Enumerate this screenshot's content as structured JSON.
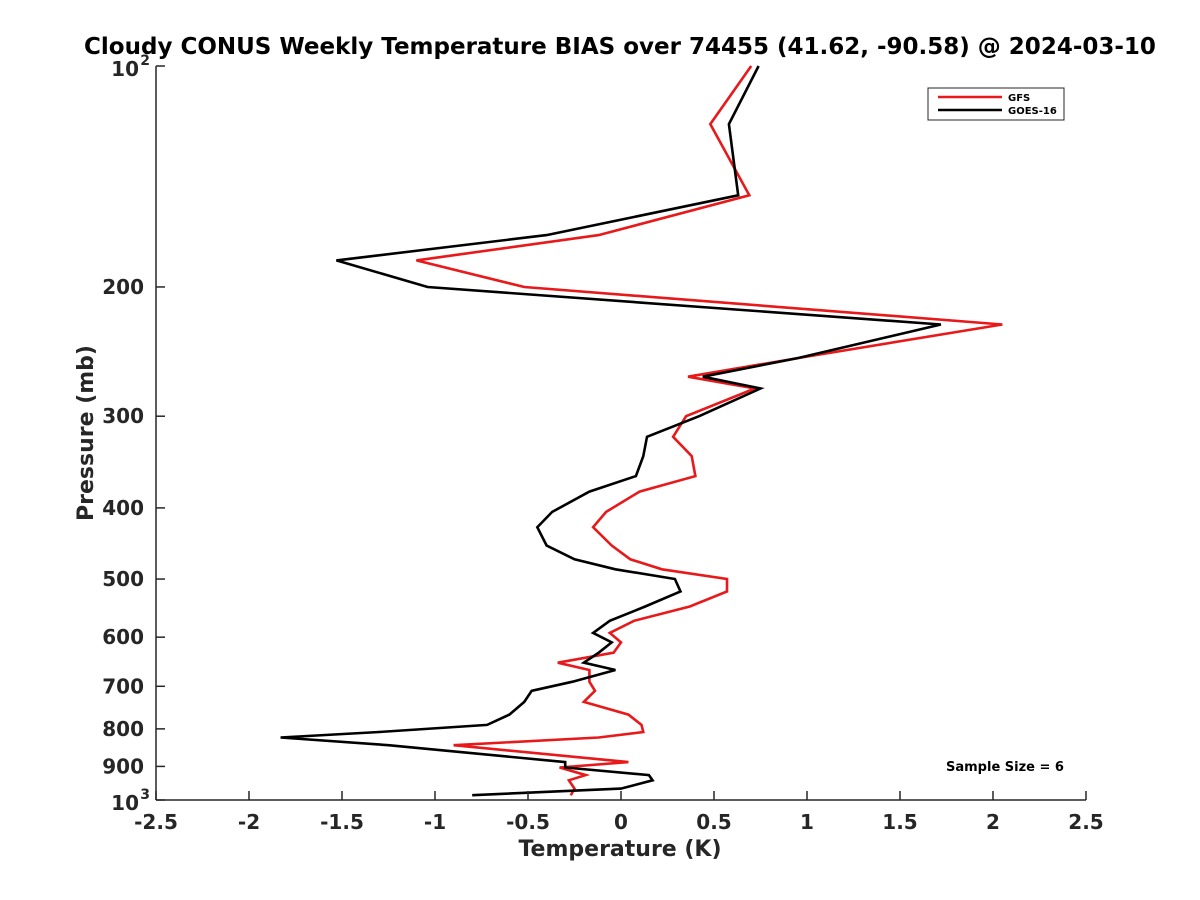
{
  "chart_data": {
    "type": "line",
    "title": "Cloudy CONUS Weekly Temperature BIAS over 74455 (41.62, -90.58) @ 2024-03-10",
    "xlabel": "Temperature (K)",
    "ylabel": "Pressure (mb)",
    "xlim": [
      -2.5,
      2.5
    ],
    "ylim": [
      100,
      1000
    ],
    "y_scale": "log",
    "y_reversed": true,
    "x_ticks": [
      "-2.5",
      "-2",
      "-1.5",
      "-1",
      "-0.5",
      "0",
      "0.5",
      "1",
      "1.5",
      "2",
      "2.5"
    ],
    "y_ticks": [
      {
        "value": 100,
        "base": "10",
        "exp": "2"
      },
      {
        "value": 200,
        "label": "200"
      },
      {
        "value": 300,
        "label": "300"
      },
      {
        "value": 400,
        "label": "400"
      },
      {
        "value": 500,
        "label": "500"
      },
      {
        "value": 600,
        "label": "600"
      },
      {
        "value": 700,
        "label": "700"
      },
      {
        "value": 800,
        "label": "800"
      },
      {
        "value": 900,
        "label": "900"
      },
      {
        "value": 1000,
        "base": "10",
        "exp": "3"
      }
    ],
    "grid": false,
    "legend_position": "top-right",
    "annotation": "Sample Size = 6",
    "series": [
      {
        "name": "GFS",
        "color": "#e8191a",
        "points": [
          [
            0.7,
            100
          ],
          [
            0.48,
            120
          ],
          [
            0.69,
            150
          ],
          [
            -0.12,
            170
          ],
          [
            -1.1,
            184
          ],
          [
            -0.52,
            200
          ],
          [
            2.05,
            225
          ],
          [
            0.95,
            250
          ],
          [
            0.36,
            265
          ],
          [
            0.72,
            275
          ],
          [
            0.35,
            300
          ],
          [
            0.28,
            320
          ],
          [
            0.38,
            340
          ],
          [
            0.4,
            362
          ],
          [
            0.1,
            380
          ],
          [
            -0.08,
            405
          ],
          [
            -0.15,
            425
          ],
          [
            -0.05,
            450
          ],
          [
            0.05,
            470
          ],
          [
            0.22,
            485
          ],
          [
            0.57,
            500
          ],
          [
            0.57,
            520
          ],
          [
            0.37,
            545
          ],
          [
            0.07,
            570
          ],
          [
            -0.06,
            592
          ],
          [
            0.0,
            610
          ],
          [
            -0.04,
            630
          ],
          [
            -0.34,
            650
          ],
          [
            -0.17,
            665
          ],
          [
            -0.17,
            690
          ],
          [
            -0.14,
            710
          ],
          [
            -0.2,
            735
          ],
          [
            0.04,
            765
          ],
          [
            0.11,
            790
          ],
          [
            0.12,
            808
          ],
          [
            -0.12,
            822
          ],
          [
            -0.9,
            842
          ],
          [
            0.04,
            888
          ],
          [
            -0.33,
            903
          ],
          [
            -0.19,
            925
          ],
          [
            -0.28,
            940
          ],
          [
            -0.25,
            965
          ],
          [
            -0.27,
            985
          ]
        ]
      },
      {
        "name": "GOES-16",
        "color": "#000000",
        "points": [
          [
            0.74,
            100
          ],
          [
            0.58,
            120
          ],
          [
            0.63,
            150
          ],
          [
            -0.4,
            170
          ],
          [
            -1.53,
            184
          ],
          [
            -1.04,
            200
          ],
          [
            1.72,
            225
          ],
          [
            0.95,
            250
          ],
          [
            0.44,
            265
          ],
          [
            0.75,
            275
          ],
          [
            0.42,
            300
          ],
          [
            0.14,
            320
          ],
          [
            0.12,
            340
          ],
          [
            0.08,
            362
          ],
          [
            -0.17,
            380
          ],
          [
            -0.37,
            405
          ],
          [
            -0.45,
            425
          ],
          [
            -0.4,
            450
          ],
          [
            -0.25,
            470
          ],
          [
            -0.03,
            485
          ],
          [
            0.29,
            500
          ],
          [
            0.32,
            520
          ],
          [
            0.13,
            545
          ],
          [
            -0.06,
            570
          ],
          [
            -0.15,
            592
          ],
          [
            -0.05,
            610
          ],
          [
            -0.12,
            630
          ],
          [
            -0.2,
            650
          ],
          [
            -0.03,
            665
          ],
          [
            -0.26,
            690
          ],
          [
            -0.48,
            710
          ],
          [
            -0.52,
            735
          ],
          [
            -0.6,
            765
          ],
          [
            -0.72,
            790
          ],
          [
            -1.3,
            808
          ],
          [
            -1.83,
            822
          ],
          [
            -1.25,
            842
          ],
          [
            -0.3,
            888
          ],
          [
            -0.3,
            903
          ],
          [
            0.15,
            925
          ],
          [
            0.17,
            940
          ],
          [
            0.0,
            965
          ],
          [
            -0.8,
            985
          ]
        ]
      }
    ]
  }
}
